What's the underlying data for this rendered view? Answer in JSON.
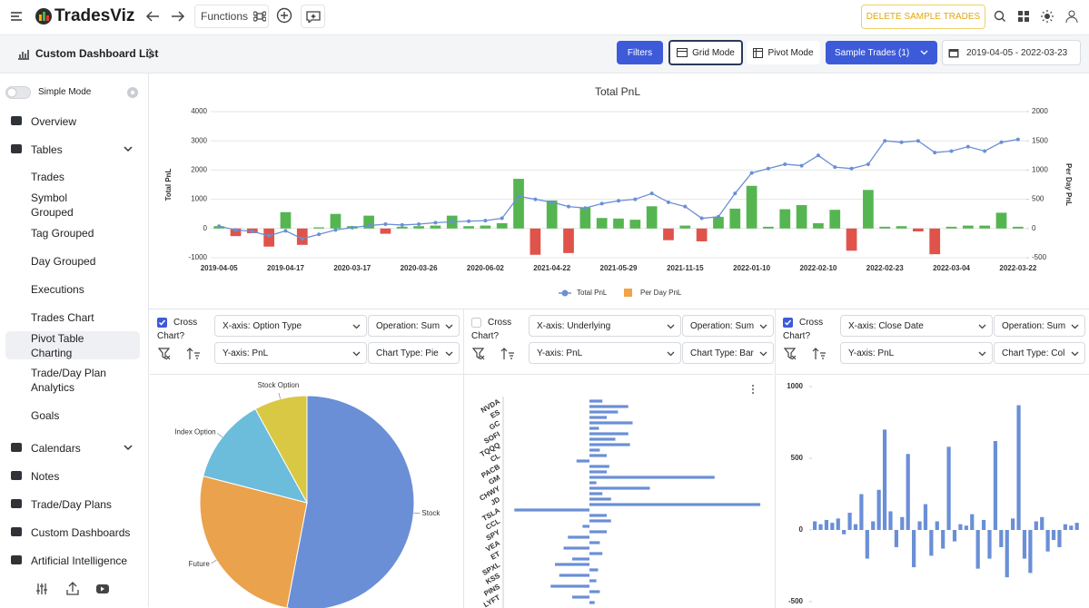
{
  "header": {
    "brand": "TradesViz",
    "functions": "Functions",
    "delete_button": "DELETE SAMPLE TRADES"
  },
  "toolbar": {
    "dashboard_list": "Custom Dashboard List",
    "filters": "Filters",
    "grid_mode": "Grid Mode",
    "pivot_mode": "Pivot Mode",
    "sample_trades": "Sample Trades (1)",
    "date_range": "2019-04-05 - 2022-03-23"
  },
  "sidebar": {
    "simple_mode": "Simple Mode",
    "items": [
      {
        "label": "Overview"
      },
      {
        "label": "Tables",
        "expandable": true,
        "children": [
          {
            "label": "Trades"
          },
          {
            "label": "Symbol Grouped"
          },
          {
            "label": "Tag Grouped"
          },
          {
            "label": "Day Grouped"
          },
          {
            "label": "Executions"
          },
          {
            "label": "Trades Chart"
          },
          {
            "label": "Pivot Table Charting",
            "active": true
          },
          {
            "label": "Trade/Day Plan Analytics"
          },
          {
            "label": "Goals"
          }
        ]
      },
      {
        "label": "Calendars",
        "expandable": true
      },
      {
        "label": "Notes"
      },
      {
        "label": "Trade/Day Plans"
      },
      {
        "label": "Custom Dashboards"
      },
      {
        "label": "Artificial Intelligence"
      }
    ]
  },
  "panels": [
    {
      "cross_chart": "Cross Chart?",
      "checked": true,
      "x_axis": "X-axis: Option Type",
      "operation": "Operation: Sum",
      "y_axis": "Y-axis: PnL",
      "chart_type": "Chart Type: Pie"
    },
    {
      "cross_chart": "Cross Chart?",
      "checked": false,
      "x_axis": "X-axis: Underlying",
      "operation": "Operation: Sum",
      "y_axis": "Y-axis: PnL",
      "chart_type": "Chart Type: Bar"
    },
    {
      "cross_chart": "Cross Chart?",
      "checked": true,
      "x_axis": "X-axis: Close Date",
      "operation": "Operation: Sum",
      "y_axis": "Y-axis: PnL",
      "chart_type": "Chart Type: Col"
    }
  ],
  "chart_data": [
    {
      "type": "combo",
      "title": "Total PnL",
      "y_label": "Total PnL",
      "y2_label": "Per Day PnL",
      "categories": [
        "2019-04-05",
        null,
        null,
        null,
        "2019-04-17",
        null,
        null,
        null,
        "2020-03-17",
        null,
        null,
        null,
        "2020-03-26",
        null,
        null,
        null,
        "2020-06-02",
        null,
        null,
        null,
        "2021-04-22",
        null,
        null,
        null,
        "2021-05-29",
        null,
        null,
        null,
        "2021-11-15",
        null,
        null,
        null,
        "2022-01-10",
        null,
        null,
        null,
        "2022-02-10",
        null,
        null,
        null,
        "2022-02-23",
        null,
        null,
        null,
        "2022-03-04",
        null,
        null,
        null,
        "2022-03-22"
      ],
      "series": [
        {
          "name": "Total PnL",
          "kind": "line",
          "color": "#6b8fd4",
          "values": [
            80,
            -50,
            -100,
            -250,
            -80,
            -350,
            -200,
            -50,
            30,
            100,
            150,
            120,
            150,
            200,
            230,
            250,
            270,
            350,
            1100,
            1000,
            900,
            750,
            700,
            850,
            950,
            1000,
            1200,
            900,
            750,
            350,
            400,
            1200,
            1900,
            2050,
            2200,
            2150,
            2500,
            2100,
            2050,
            2200,
            3000,
            2950,
            3000,
            2600,
            2650,
            2800,
            2650,
            2950,
            3050
          ]
        },
        {
          "name": "Per Day PnL",
          "kind": "bar",
          "axis": "y2",
          "color": "#f0a446",
          "positive_color": "#55b651",
          "negative_color": "#e0534a",
          "values": [
            40,
            -130,
            -80,
            -310,
            280,
            -280,
            20,
            250,
            40,
            220,
            -90,
            30,
            40,
            50,
            220,
            40,
            50,
            90,
            850,
            -450,
            480,
            -420,
            360,
            180,
            170,
            150,
            380,
            -200,
            50,
            -220,
            200,
            340,
            730,
            30,
            330,
            400,
            90,
            320,
            -380,
            660,
            30,
            40,
            -50,
            -440,
            30,
            50,
            50,
            270,
            30
          ]
        }
      ],
      "ylim": [
        -1000,
        4000
      ],
      "yticks": [
        -1000,
        0,
        1000,
        2000,
        3000,
        4000
      ],
      "y2lim": [
        -500,
        2000
      ],
      "y2ticks": [
        -500,
        0,
        500,
        1000,
        1500,
        2000
      ],
      "grid": true,
      "legend": "bottom"
    },
    {
      "type": "pie",
      "categories": [
        "Stock",
        "Future",
        "Index Option",
        "Stock Option"
      ],
      "values": [
        53,
        26,
        13,
        8
      ],
      "colors": [
        "#6a8fd6",
        "#eaa24c",
        "#6cbcdb",
        "#d8c844"
      ]
    },
    {
      "type": "hbar",
      "categories": [
        "NVDA",
        null,
        "ES",
        null,
        "GC",
        null,
        "SOFI",
        null,
        "TQQQ",
        null,
        "CL",
        null,
        "PACB",
        null,
        "GM",
        null,
        "CHWY",
        null,
        "JD",
        null,
        "TSLA",
        null,
        "CCL",
        null,
        "SPY",
        null,
        "VEA",
        null,
        "ET",
        null,
        "SPXL",
        null,
        "KSS",
        null,
        "PINS",
        null,
        "LYFT",
        null
      ],
      "values": [
        150,
        450,
        330,
        200,
        500,
        110,
        450,
        300,
        470,
        120,
        200,
        -150,
        230,
        200,
        1450,
        80,
        700,
        150,
        250,
        1980,
        -870,
        200,
        250,
        -80,
        200,
        -250,
        120,
        -300,
        150,
        -200,
        -400,
        100,
        -350,
        80,
        -450,
        120,
        -200,
        60
      ],
      "xlim": [
        -1000,
        2000
      ],
      "color": "#6a8fd6"
    },
    {
      "type": "bar",
      "values": [
        60,
        40,
        70,
        50,
        80,
        -30,
        120,
        40,
        250,
        -200,
        60,
        280,
        700,
        130,
        -120,
        90,
        530,
        -260,
        60,
        180,
        -180,
        60,
        -130,
        580,
        -80,
        40,
        30,
        110,
        -270,
        70,
        -200,
        620,
        -120,
        -330,
        80,
        870,
        -200,
        -300,
        60,
        90,
        -150,
        -70,
        -120,
        40,
        30,
        50
      ],
      "ylim": [
        -500,
        1000
      ],
      "yticks": [
        -500,
        0,
        500,
        1000
      ],
      "color": "#6a8fd6"
    }
  ]
}
